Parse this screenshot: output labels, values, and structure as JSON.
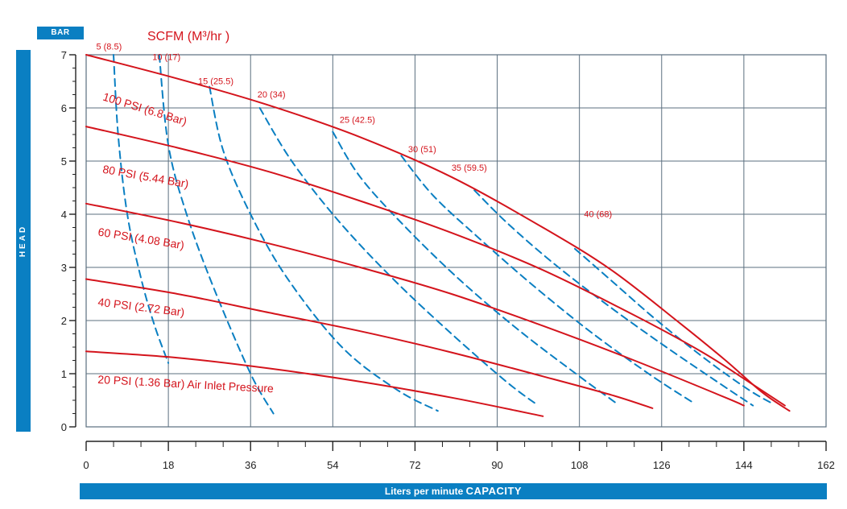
{
  "header": {
    "y_unit_badge": "BAR",
    "scfm_title": "SCFM (M³/hr )"
  },
  "axes": {
    "y_side_label": "HEAD",
    "x_bar_prefix": "Liters per minute",
    "x_bar_bold": "CAPACITY"
  },
  "colors": {
    "accent_blue": "#0a7fc2",
    "pressure_red": "#d4141c",
    "grid": "#5b6f7f"
  },
  "chart_data": {
    "type": "line",
    "xlim": [
      0,
      162
    ],
    "ylim": [
      0,
      7
    ],
    "x_ticks": [
      "0",
      "18",
      "36",
      "54",
      "72",
      "90",
      "108",
      "126",
      "144",
      "162"
    ],
    "y_ticks": [
      "0",
      "1",
      "2",
      "3",
      "4",
      "5",
      "6",
      "7"
    ],
    "grid": true,
    "series": [
      {
        "name": "100 PSI (6.8 Bar)",
        "label": "100 PSI (6.8 Bar)",
        "style": "solid",
        "x": [
          0,
          20,
          40,
          60,
          80,
          100,
          115,
          130,
          140,
          148,
          154
        ],
        "y": [
          7.0,
          6.55,
          6.05,
          5.45,
          4.7,
          3.75,
          2.95,
          1.95,
          1.25,
          0.65,
          0.3
        ]
      },
      {
        "name": "80 PSI (5.44 Bar)",
        "label": "80 PSI (5.44 Bar)",
        "style": "solid",
        "x": [
          0,
          20,
          40,
          60,
          80,
          100,
          120,
          135,
          145,
          153
        ],
        "y": [
          5.65,
          5.25,
          4.8,
          4.25,
          3.65,
          2.95,
          2.1,
          1.4,
          0.85,
          0.4
        ]
      },
      {
        "name": "60 PSI (4.08 Bar)",
        "label": "60 PSI (4.08 Bar)",
        "style": "solid",
        "x": [
          0,
          20,
          40,
          60,
          80,
          100,
          120,
          140,
          144
        ],
        "y": [
          4.2,
          3.85,
          3.45,
          3.0,
          2.5,
          1.9,
          1.25,
          0.55,
          0.4
        ]
      },
      {
        "name": "40 PSI (2.72 Bar)",
        "label": "40 PSI (2.72 Bar)",
        "style": "solid",
        "x": [
          0,
          20,
          40,
          60,
          80,
          100,
          115,
          124
        ],
        "y": [
          2.78,
          2.5,
          2.15,
          1.8,
          1.4,
          0.95,
          0.6,
          0.35
        ]
      },
      {
        "name": "20 PSI (1.36 Bar) Air Inlet Pressure",
        "label": "20 PSI (1.36 Bar) Air Inlet Pressure",
        "style": "solid",
        "x": [
          0,
          20,
          40,
          60,
          80,
          100
        ],
        "y": [
          1.42,
          1.3,
          1.1,
          0.85,
          0.55,
          0.2
        ]
      },
      {
        "name": "5 (8.5)",
        "label": "5 (8.5)",
        "style": "dashed",
        "x": [
          6,
          7,
          9,
          12,
          15,
          18
        ],
        "y": [
          7.0,
          5.5,
          4.0,
          2.8,
          1.9,
          1.2
        ]
      },
      {
        "name": "10 (17)",
        "label": "10 (17)",
        "style": "dashed",
        "x": [
          16,
          18,
          22,
          28,
          36,
          41
        ],
        "y": [
          7.0,
          5.3,
          4.0,
          2.6,
          1.0,
          0.25
        ]
      },
      {
        "name": "15 (25.5)",
        "label": "15 (25.5)",
        "style": "dashed",
        "x": [
          27,
          30,
          36,
          44,
          56,
          68,
          77
        ],
        "y": [
          6.4,
          5.2,
          4.0,
          2.8,
          1.5,
          0.7,
          0.3
        ]
      },
      {
        "name": "20 (34)",
        "label": "20 (34)",
        "style": "dashed",
        "x": [
          38,
          45,
          55,
          67,
          80,
          92,
          99
        ],
        "y": [
          6.0,
          5.0,
          3.9,
          2.8,
          1.75,
          0.85,
          0.4
        ]
      },
      {
        "name": "25 (42.5)",
        "label": "25 (42.5)",
        "style": "dashed",
        "x": [
          54,
          60,
          70,
          82,
          95,
          108,
          116
        ],
        "y": [
          5.55,
          4.7,
          3.75,
          2.75,
          1.8,
          0.95,
          0.45
        ]
      },
      {
        "name": "30 (51)",
        "label": "30 (51)",
        "style": "dashed",
        "x": [
          69,
          76,
          86,
          98,
          111,
          124,
          133
        ],
        "y": [
          5.1,
          4.35,
          3.55,
          2.65,
          1.75,
          0.95,
          0.45
        ]
      },
      {
        "name": "35 (59.5)",
        "label": "35 (59.5)",
        "style": "dashed",
        "x": [
          85,
          92,
          102,
          114,
          127,
          139,
          146
        ],
        "y": [
          4.45,
          3.85,
          3.1,
          2.3,
          1.5,
          0.8,
          0.4
        ]
      },
      {
        "name": "40 (68)",
        "label": "40 (68)",
        "style": "dashed",
        "x": [
          107,
          115,
          125,
          136,
          145,
          150
        ],
        "y": [
          3.35,
          2.75,
          2.0,
          1.25,
          0.7,
          0.45
        ]
      }
    ]
  }
}
